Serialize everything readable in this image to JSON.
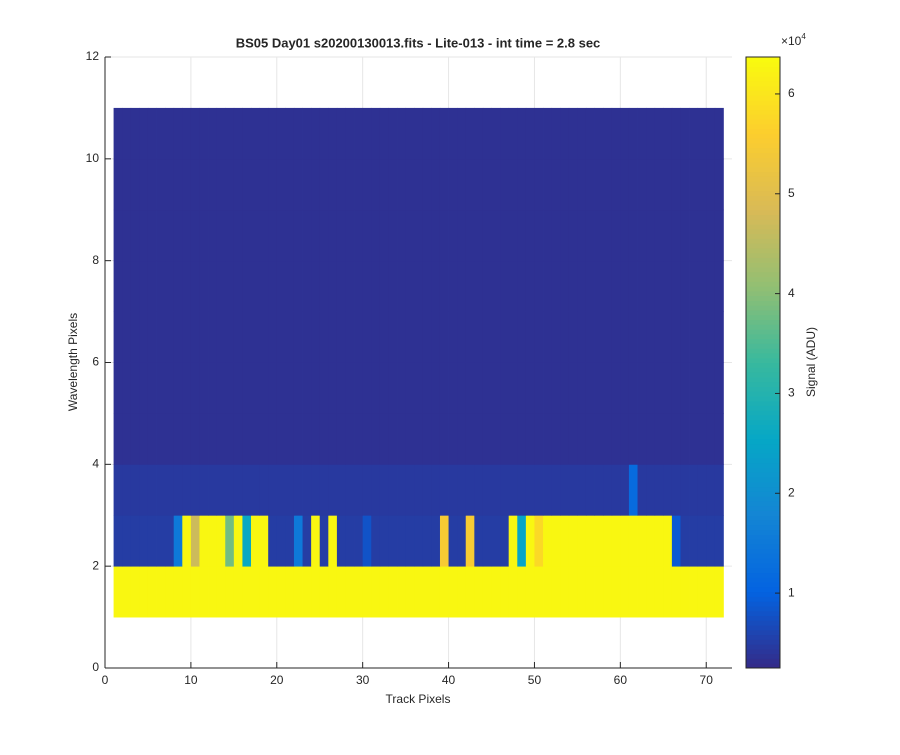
{
  "chart_data": {
    "type": "heatmap",
    "title": "BS05 Day01  s20200130013.fits - Lite-013 - int time = 2.8 sec",
    "x_label": "Track Pixels",
    "y_label": "Wavelength Pixels",
    "colorbar_label": "Signal (ADU)",
    "colorbar_exponent": {
      "base": "×10",
      "power": "4"
    },
    "xlim": [
      0,
      73
    ],
    "ylim": [
      0,
      12
    ],
    "xticks": [
      0,
      10,
      20,
      30,
      40,
      50,
      60,
      70
    ],
    "yticks": [
      0,
      2,
      4,
      6,
      8,
      10,
      12
    ],
    "grid": true,
    "clim": [
      2500,
      63700
    ],
    "cticks": [
      {
        "value": 10000,
        "label": "1"
      },
      {
        "value": 20000,
        "label": "2"
      },
      {
        "value": 30000,
        "label": "3"
      },
      {
        "value": 40000,
        "label": "4"
      },
      {
        "value": 50000,
        "label": "5"
      },
      {
        "value": 60000,
        "label": "6"
      }
    ],
    "colormap": [
      "#352a87",
      "#0363e1",
      "#1485d4",
      "#06a7c6",
      "#38b99e",
      "#92bf73",
      "#d9ba56",
      "#fcce2e",
      "#f9fb0e"
    ],
    "x_edges": [
      1,
      2,
      3,
      4,
      5,
      6,
      7,
      8,
      9,
      10,
      11,
      12,
      13,
      14,
      15,
      16,
      17,
      18,
      19,
      20,
      21,
      22,
      23,
      24,
      25,
      26,
      27,
      28,
      29,
      30,
      31,
      32,
      33,
      34,
      35,
      36,
      37,
      38,
      39,
      40,
      41,
      42,
      43,
      44,
      45,
      46,
      47,
      48,
      49,
      50,
      51,
      52,
      53,
      54,
      55,
      56,
      57,
      58,
      59,
      60,
      61,
      62,
      63,
      64,
      65,
      66,
      67,
      68,
      69,
      70,
      71,
      72
    ],
    "y_edges": [
      1,
      2,
      3,
      4,
      5,
      6,
      7,
      8,
      9,
      10,
      11
    ],
    "values": [
      [
        63000,
        63000,
        63000,
        63000,
        63000,
        63000,
        63000,
        63000,
        63000,
        63000,
        63000,
        63000,
        63000,
        63000,
        63000,
        63000,
        63000,
        63000,
        63000,
        63000,
        63000,
        63000,
        63000,
        63000,
        63000,
        63000,
        63000,
        63000,
        63000,
        63000,
        63000,
        63000,
        63000,
        63000,
        63000,
        63000,
        63000,
        63000,
        63000,
        63000,
        63000,
        63000,
        63000,
        63000,
        63000,
        63000,
        63000,
        63000,
        63000,
        63000,
        63000,
        63000,
        63000,
        63000,
        63000,
        63000,
        63000,
        63000,
        63000,
        63000,
        63000,
        63000,
        63000,
        63000,
        63000,
        63000,
        63000,
        63000,
        63000,
        63000,
        63000
      ],
      [
        5000,
        5000,
        5000,
        5000,
        5000,
        5000,
        5000,
        15000,
        63000,
        47000,
        63000,
        63000,
        63000,
        38000,
        63000,
        26000,
        63000,
        63000,
        5000,
        5000,
        5000,
        15000,
        5000,
        63000,
        5000,
        63000,
        5000,
        5000,
        5000,
        8000,
        5000,
        5000,
        5000,
        5000,
        5000,
        5000,
        5000,
        5000,
        55000,
        5000,
        5000,
        55000,
        5000,
        5000,
        5000,
        5000,
        63000,
        25000,
        63000,
        58000,
        63000,
        63000,
        63000,
        63000,
        63000,
        63000,
        63000,
        63000,
        63000,
        63000,
        63000,
        63000,
        63000,
        63000,
        63000,
        9000,
        5000,
        5000,
        5000,
        5000,
        5000
      ],
      [
        4500,
        4500,
        4500,
        4500,
        4500,
        4500,
        4500,
        4500,
        4500,
        4500,
        4500,
        4500,
        4500,
        4500,
        4500,
        4500,
        4500,
        4500,
        4500,
        4500,
        4500,
        4500,
        4500,
        4500,
        4500,
        4500,
        4500,
        4500,
        4500,
        4500,
        4500,
        4500,
        4500,
        4500,
        4500,
        4500,
        4500,
        4500,
        4500,
        4500,
        4500,
        4500,
        4500,
        4500,
        4500,
        4500,
        4500,
        4500,
        4500,
        4500,
        4500,
        4500,
        4500,
        4500,
        4500,
        4500,
        4500,
        4500,
        4500,
        4500,
        12000,
        4500,
        4500,
        4500,
        4500,
        4500,
        4500,
        4500,
        4500,
        4500,
        4500
      ],
      [
        3500,
        3500,
        3500,
        3500,
        3500,
        3500,
        3500,
        3500,
        3500,
        3500,
        3500,
        3500,
        3500,
        3500,
        3500,
        3500,
        3500,
        3500,
        3500,
        3500,
        3500,
        3500,
        3500,
        3500,
        3500,
        3500,
        3500,
        3500,
        3500,
        3500,
        3500,
        3500,
        3500,
        3500,
        3500,
        3500,
        3500,
        3500,
        3500,
        3500,
        3500,
        3500,
        3500,
        3500,
        3500,
        3500,
        3500,
        3500,
        3500,
        3500,
        3500,
        3500,
        3500,
        3500,
        3500,
        3500,
        3500,
        3500,
        3500,
        3500,
        3500,
        3500,
        3500,
        3500,
        3500,
        3500,
        3500,
        3500,
        3500,
        3500,
        3500
      ],
      [
        3500,
        3500,
        3500,
        3500,
        3500,
        3500,
        3500,
        3500,
        3500,
        3500,
        3500,
        3500,
        3500,
        3500,
        3500,
        3500,
        3500,
        3500,
        3500,
        3500,
        3500,
        3500,
        3500,
        3500,
        3500,
        3500,
        3500,
        3500,
        3500,
        3500,
        3500,
        3500,
        3500,
        3500,
        3500,
        3500,
        3500,
        3500,
        3500,
        3500,
        3500,
        3500,
        3500,
        3500,
        3500,
        3500,
        3500,
        3500,
        3500,
        3500,
        3500,
        3500,
        3500,
        3500,
        3500,
        3500,
        3500,
        3500,
        3500,
        3500,
        3500,
        3500,
        3500,
        3500,
        3500,
        3500,
        3500,
        3500,
        3500,
        3500,
        3500
      ],
      [
        3500,
        3500,
        3500,
        3500,
        3500,
        3500,
        3500,
        3500,
        3500,
        3500,
        3500,
        3500,
        3500,
        3500,
        3500,
        3500,
        3500,
        3500,
        3500,
        3500,
        3500,
        3500,
        3500,
        3500,
        3500,
        3500,
        3500,
        3500,
        3500,
        3500,
        3500,
        3500,
        3500,
        3500,
        3500,
        3500,
        3500,
        3500,
        3500,
        3500,
        3500,
        3500,
        3500,
        3500,
        3500,
        3500,
        3500,
        3500,
        3500,
        3500,
        3500,
        3500,
        3500,
        3500,
        3500,
        3500,
        3500,
        3500,
        3500,
        3500,
        3500,
        3500,
        3500,
        3500,
        3500,
        3500,
        3500,
        3500,
        3500,
        3500,
        3500
      ],
      [
        3500,
        3500,
        3500,
        3500,
        3500,
        3500,
        3500,
        3500,
        3500,
        3500,
        3500,
        3500,
        3500,
        3500,
        3500,
        3500,
        3500,
        3500,
        3500,
        3500,
        3500,
        3500,
        3500,
        3500,
        3500,
        3500,
        3500,
        3500,
        3500,
        3500,
        3500,
        3500,
        3500,
        3500,
        3500,
        3500,
        3500,
        3500,
        3500,
        3500,
        3500,
        3500,
        3500,
        3500,
        3500,
        3500,
        3500,
        3500,
        3500,
        3500,
        3500,
        3500,
        3500,
        3500,
        3500,
        3500,
        3500,
        3500,
        3500,
        3500,
        3500,
        3500,
        3500,
        3500,
        3500,
        3500,
        3500,
        3500,
        3500,
        3500,
        3500
      ],
      [
        3500,
        3500,
        3500,
        3500,
        3500,
        3500,
        3500,
        3500,
        3500,
        3500,
        3500,
        3500,
        3500,
        3500,
        3500,
        3500,
        3500,
        3500,
        3500,
        3500,
        3500,
        3500,
        3500,
        3500,
        3500,
        3500,
        3500,
        3500,
        3500,
        3500,
        3500,
        3500,
        3500,
        3500,
        3500,
        3500,
        3500,
        3500,
        3500,
        3500,
        3500,
        3500,
        3500,
        3500,
        3500,
        3500,
        3500,
        3500,
        3500,
        3500,
        3500,
        3500,
        3500,
        3500,
        3500,
        3500,
        3500,
        3500,
        3500,
        3500,
        3500,
        3500,
        3500,
        3500,
        3500,
        3500,
        3500,
        3500,
        3500,
        3500,
        3500
      ],
      [
        3500,
        3500,
        3500,
        3500,
        3500,
        3500,
        3500,
        3500,
        3500,
        3500,
        3500,
        3500,
        3500,
        3500,
        3500,
        3500,
        3500,
        3500,
        3500,
        3500,
        3500,
        3500,
        3500,
        3500,
        3500,
        3500,
        3500,
        3500,
        3500,
        3500,
        3500,
        3500,
        3500,
        3500,
        3500,
        3500,
        3500,
        3500,
        3500,
        3500,
        3500,
        3500,
        3500,
        3500,
        3500,
        3500,
        3500,
        3500,
        3500,
        3500,
        3500,
        3500,
        3500,
        3500,
        3500,
        3500,
        3500,
        3500,
        3500,
        3500,
        3500,
        3500,
        3500,
        3500,
        3500,
        3500,
        3500,
        3500,
        3500,
        3500,
        3500
      ],
      [
        3500,
        3500,
        3500,
        3500,
        3500,
        3500,
        3500,
        3500,
        3500,
        3500,
        3500,
        3500,
        3500,
        3500,
        3500,
        3500,
        3500,
        3500,
        3500,
        3500,
        3500,
        3500,
        3500,
        3500,
        3500,
        3500,
        3500,
        3500,
        3500,
        3500,
        3500,
        3500,
        3500,
        3500,
        3500,
        3500,
        3500,
        3500,
        3500,
        3500,
        3500,
        3500,
        3500,
        3500,
        3500,
        3500,
        3500,
        3500,
        3500,
        3500,
        3500,
        3500,
        3500,
        3500,
        3500,
        3500,
        3500,
        3500,
        3500,
        3500,
        3500,
        3500,
        3500,
        3500,
        3500,
        3500,
        3500,
        3500,
        3500,
        3500,
        3500
      ]
    ]
  }
}
